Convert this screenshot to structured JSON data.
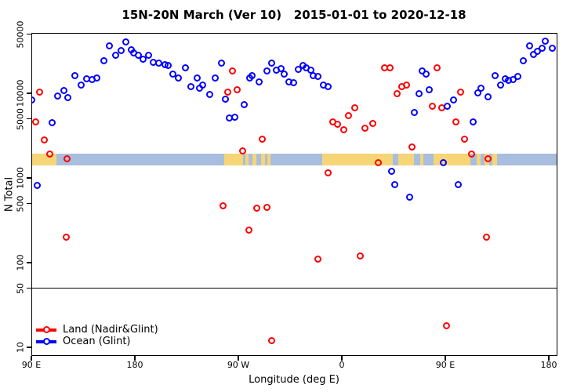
{
  "title": "15N-20N March (Ver 10)   2015-01-01 to 2020-12-18",
  "chart_data": {
    "type": "scatter",
    "title": "15N-20N March (Ver 10)   2015-01-01 to 2020-12-18",
    "xlabel": "Longitude (deg E)",
    "ylabel": "N Total",
    "x_axis": {
      "note": "longitude axis wraps eastward starting at 90E; values below are degrees along axis (90=90E, 180, 270=90W, 360=0, 450=90E, 540=180)",
      "range_deg": [
        85.5,
        547.5
      ],
      "ticks_deg": [
        90,
        180,
        270,
        360,
        450,
        540
      ],
      "tick_labels": [
        "90 E",
        "180",
        "90 W",
        "0",
        "90 E",
        "180"
      ]
    },
    "y_axis": {
      "scale": "log",
      "range": [
        8,
        52000
      ],
      "ticks": [
        10,
        50,
        100,
        500,
        1000,
        5000,
        10000,
        50000
      ],
      "tick_labels": [
        "10",
        "50",
        "100",
        "500",
        "1000",
        "5000",
        "10000",
        "50000"
      ]
    },
    "ref_line_y": 50,
    "grid": "off",
    "legend_position": "bottom-left",
    "series": [
      {
        "name": "Land (Nadir&Glint)",
        "color": "#ff0000",
        "points": [
          [
            97,
            10400
          ],
          [
            94,
            4600
          ],
          [
            101,
            2800
          ],
          [
            106,
            1900
          ],
          [
            121,
            1700
          ],
          [
            120,
            200
          ],
          [
            261,
            10400
          ],
          [
            265,
            18200
          ],
          [
            269,
            10900
          ],
          [
            274,
            2100
          ],
          [
            291,
            2900
          ],
          [
            257,
            470
          ],
          [
            279,
            240
          ],
          [
            286,
            440
          ],
          [
            295,
            450
          ],
          [
            299,
            12
          ],
          [
            339,
            110
          ],
          [
            348,
            1140
          ],
          [
            352,
            4600
          ],
          [
            356,
            4300
          ],
          [
            362,
            3700
          ],
          [
            366,
            5400
          ],
          [
            371,
            6700
          ],
          [
            380,
            3900
          ],
          [
            387,
            4400
          ],
          [
            392,
            1500
          ],
          [
            376,
            120
          ],
          [
            397,
            20000
          ],
          [
            402,
            20000
          ],
          [
            408,
            10000
          ],
          [
            412,
            12000
          ],
          [
            416,
            12600
          ],
          [
            421,
            2300
          ],
          [
            439,
            7100
          ],
          [
            443,
            20000
          ],
          [
            447,
            6700
          ],
          [
            459,
            4600
          ],
          [
            463,
            10400
          ],
          [
            467,
            2900
          ],
          [
            473,
            1900
          ],
          [
            451,
            18
          ],
          [
            486,
            200
          ],
          [
            487,
            1700
          ]
        ]
      },
      {
        "name": "Ocean (Glint)",
        "color": "#0000ff",
        "points": [
          [
            90,
            8300
          ],
          [
            95,
            810
          ],
          [
            108,
            4500
          ],
          [
            113,
            9200
          ],
          [
            118,
            10700
          ],
          [
            122,
            8800
          ],
          [
            128,
            16300
          ],
          [
            133,
            12600
          ],
          [
            138,
            14700
          ],
          [
            143,
            14400
          ],
          [
            147,
            15300
          ],
          [
            153,
            24000
          ],
          [
            158,
            36000
          ],
          [
            163,
            28000
          ],
          [
            168,
            32000
          ],
          [
            172,
            40000
          ],
          [
            177,
            33000
          ],
          [
            179,
            30000
          ],
          [
            183,
            28400
          ],
          [
            187,
            25500
          ],
          [
            192,
            28400
          ],
          [
            196,
            23000
          ],
          [
            201,
            22500
          ],
          [
            206,
            22000
          ],
          [
            209,
            21500
          ],
          [
            213,
            17000
          ],
          [
            218,
            15000
          ],
          [
            224,
            20000
          ],
          [
            229,
            12100
          ],
          [
            234,
            15000
          ],
          [
            236,
            11400
          ],
          [
            239,
            12400
          ],
          [
            245,
            9600
          ],
          [
            250,
            15000
          ],
          [
            255,
            22500
          ],
          [
            259,
            8600
          ],
          [
            262,
            5100
          ],
          [
            267,
            5200
          ],
          [
            275,
            7400
          ],
          [
            280,
            15300
          ],
          [
            282,
            16300
          ],
          [
            288,
            13500
          ],
          [
            295,
            18200
          ],
          [
            299,
            22500
          ],
          [
            303,
            18600
          ],
          [
            307,
            19400
          ],
          [
            310,
            17000
          ],
          [
            314,
            13500
          ],
          [
            318,
            13400
          ],
          [
            322,
            19000
          ],
          [
            326,
            21500
          ],
          [
            329,
            20000
          ],
          [
            333,
            18600
          ],
          [
            335,
            16000
          ],
          [
            339,
            15700
          ],
          [
            344,
            12400
          ],
          [
            348,
            11900
          ],
          [
            403,
            1210
          ],
          [
            406,
            840
          ],
          [
            419,
            590
          ],
          [
            423,
            5900
          ],
          [
            427,
            9800
          ],
          [
            430,
            18200
          ],
          [
            433,
            16900
          ],
          [
            436,
            11100
          ],
          [
            448,
            1500
          ],
          [
            452,
            7000
          ],
          [
            457,
            8400
          ],
          [
            461,
            840
          ],
          [
            474,
            4600
          ],
          [
            478,
            10200
          ],
          [
            481,
            11400
          ],
          [
            487,
            9000
          ],
          [
            493,
            16300
          ],
          [
            498,
            12600
          ],
          [
            502,
            14700
          ],
          [
            505,
            14100
          ],
          [
            509,
            14400
          ],
          [
            513,
            15900
          ],
          [
            518,
            24000
          ],
          [
            523,
            36000
          ],
          [
            527,
            29000
          ],
          [
            530,
            31000
          ],
          [
            534,
            34000
          ],
          [
            537,
            41000
          ],
          [
            543,
            34000
          ]
        ]
      }
    ],
    "land_ocean_strip": {
      "description": "horizontal geography strip showing land/ocean along 15N-20N",
      "ocean_color": "#a9bede",
      "land_color": "#f5d576",
      "y_range": [
        1400,
        1950
      ],
      "land_segments_deg": [
        [
          86,
          112
        ],
        [
          258,
          274
        ],
        [
          276,
          279
        ],
        [
          282,
          286
        ],
        [
          290,
          293
        ],
        [
          295,
          298
        ],
        [
          343,
          404
        ],
        [
          409,
          423
        ],
        [
          428,
          431
        ],
        [
          440,
          472
        ],
        [
          477,
          481
        ],
        [
          484,
          488
        ],
        [
          491,
          495
        ]
      ]
    }
  },
  "legend": {
    "items": [
      {
        "label": "Land (Nadir&Glint)",
        "color": "#ff0000"
      },
      {
        "label": "Ocean (Glint)",
        "color": "#0000ff"
      }
    ]
  }
}
